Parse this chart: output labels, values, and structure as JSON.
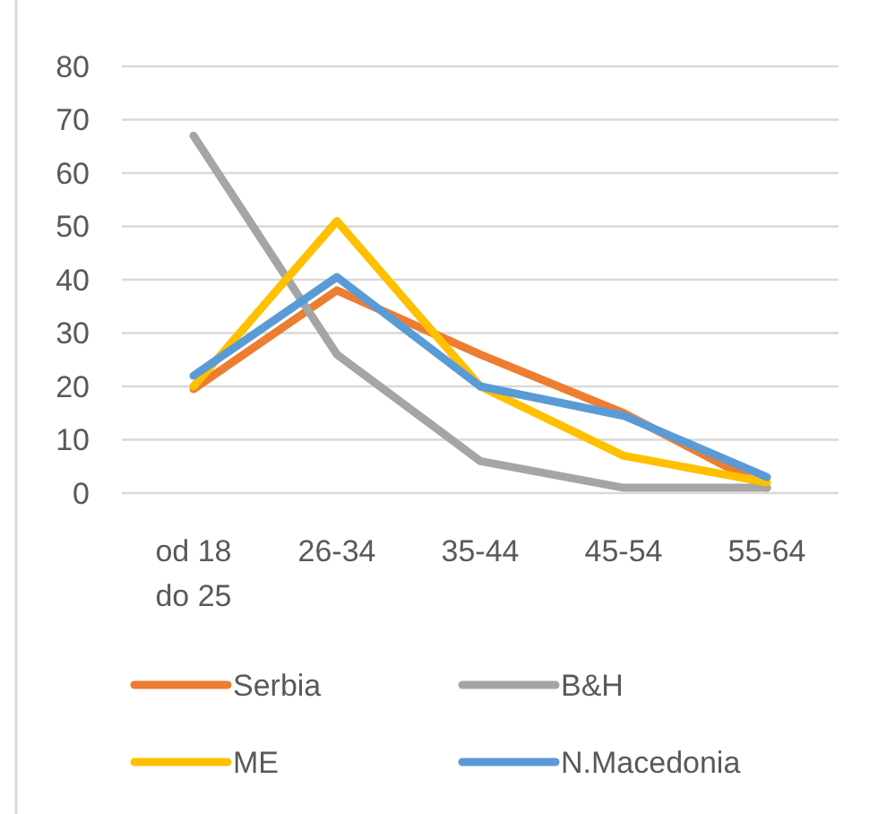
{
  "chart_data": {
    "type": "line",
    "categories": [
      "od 18\ndo 25",
      "26-34",
      "35-44",
      "45-54",
      "55-64"
    ],
    "series": [
      {
        "name": "Serbia",
        "color": "#ed7d31",
        "values": [
          19.5,
          38,
          26,
          15,
          1
        ]
      },
      {
        "name": "B&H",
        "color": "#a5a5a5",
        "values": [
          67,
          26,
          6,
          1,
          1
        ]
      },
      {
        "name": "ME",
        "color": "#ffc000",
        "values": [
          20,
          51,
          20,
          7,
          2
        ]
      },
      {
        "name": "N.Macedonia",
        "color": "#5b9bd5",
        "values": [
          22,
          40.5,
          20,
          14.5,
          3
        ]
      }
    ],
    "ylim": [
      0,
      80
    ],
    "yticks": [
      0,
      10,
      20,
      30,
      40,
      50,
      60,
      70,
      80
    ],
    "grid": "y",
    "legend": "bottom",
    "marker": "none",
    "line_style": "solid"
  }
}
